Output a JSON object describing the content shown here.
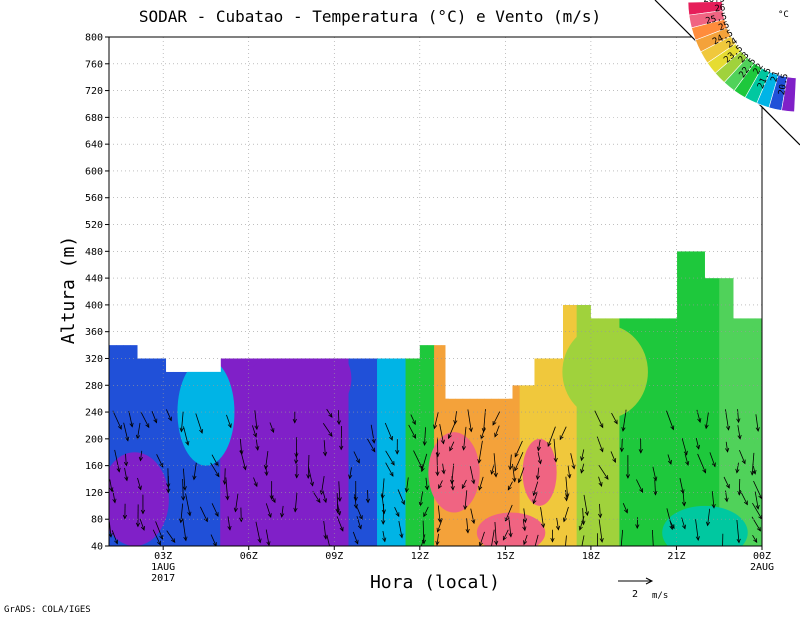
{
  "chart_data": {
    "type": "heatmap",
    "title": "SODAR - Cubatao - Temperatura (°C) e Vento (m/s)",
    "xlabel": "Hora (local)",
    "ylabel": "Altura (m)",
    "ylim": [
      40,
      800
    ],
    "y_ticks": [
      "40",
      "80",
      "120",
      "160",
      "200",
      "240",
      "280",
      "320",
      "360",
      "400",
      "440",
      "480",
      "520",
      "560",
      "600",
      "640",
      "680",
      "720",
      "760",
      "800"
    ],
    "x_ticks": [
      {
        "hour": 3,
        "label": "03Z",
        "sub1": "1AUG",
        "sub2": "2017"
      },
      {
        "hour": 6,
        "label": "06Z",
        "sub1": "",
        "sub2": ""
      },
      {
        "hour": 9,
        "label": "09Z",
        "sub1": "",
        "sub2": ""
      },
      {
        "hour": 12,
        "label": "12Z",
        "sub1": "",
        "sub2": ""
      },
      {
        "hour": 15,
        "label": "15Z",
        "sub1": "",
        "sub2": ""
      },
      {
        "hour": 18,
        "label": "18Z",
        "sub1": "",
        "sub2": ""
      },
      {
        "hour": 21,
        "label": "21Z",
        "sub1": "",
        "sub2": ""
      },
      {
        "hour": 24,
        "label": "00Z",
        "sub1": "2AUG",
        "sub2": ""
      }
    ],
    "xlim_hours": [
      1.1,
      24
    ],
    "grid": true,
    "colorbar": {
      "unit": "°C",
      "levels": [
        "26.5",
        "26",
        "25.5",
        "25",
        "24.5",
        "24",
        "23.5",
        "23",
        "22.5",
        "22",
        "21.5",
        "21",
        "20.5"
      ],
      "colors": [
        "#e61e5a",
        "#f06482",
        "#ff8c3c",
        "#f4a23a",
        "#f0c83c",
        "#e6dc32",
        "#a0d23c",
        "#50d25a",
        "#1ec83c",
        "#00c8a0",
        "#00b4e6",
        "#2050d8",
        "#8020c8"
      ]
    },
    "top_height_profile": [
      {
        "from": 1.1,
        "to": 2.1,
        "top": 340
      },
      {
        "from": 2.1,
        "to": 3.1,
        "top": 320
      },
      {
        "from": 3.1,
        "to": 5.0,
        "top": 300
      },
      {
        "from": 5.0,
        "to": 11.9,
        "top": 320
      },
      {
        "from": 11.9,
        "to": 12.9,
        "top": 340
      },
      {
        "from": 12.9,
        "to": 15.1,
        "top": 260
      },
      {
        "from": 15.1,
        "to": 16.0,
        "top": 280
      },
      {
        "from": 16.0,
        "to": 17.0,
        "top": 320
      },
      {
        "from": 17.0,
        "to": 18.0,
        "top": 400
      },
      {
        "from": 18.0,
        "to": 21.0,
        "top": 380
      },
      {
        "from": 21.0,
        "to": 22.0,
        "top": 480
      },
      {
        "from": 22.0,
        "to": 23.0,
        "top": 440
      },
      {
        "from": 23.0,
        "to": 24.0,
        "top": 380
      }
    ],
    "temperature_bands": [
      {
        "from": 1.1,
        "to": 5.0,
        "value": 21.0
      },
      {
        "from": 5.0,
        "to": 6.0,
        "value": 20.5
      },
      {
        "from": 6.0,
        "to": 9.5,
        "value": 20.5
      },
      {
        "from": 9.5,
        "to": 10.5,
        "value": 21.0
      },
      {
        "from": 10.5,
        "to": 11.5,
        "value": 21.5
      },
      {
        "from": 11.5,
        "to": 12.5,
        "value": 22.5
      },
      {
        "from": 12.5,
        "to": 15.5,
        "value": 25.0
      },
      {
        "from": 15.5,
        "to": 17.5,
        "value": 24.5
      },
      {
        "from": 17.5,
        "to": 19.0,
        "value": 23.5
      },
      {
        "from": 19.0,
        "to": 22.5,
        "value": 22.5
      },
      {
        "from": 22.5,
        "to": 24.0,
        "value": 23.0
      }
    ],
    "temperature_patches": [
      {
        "hour": 2.0,
        "alt": 110,
        "rh": 1.2,
        "ra": 70,
        "value": 20.5
      },
      {
        "hour": 4.5,
        "alt": 240,
        "rh": 1.0,
        "ra": 80,
        "value": 21.5
      },
      {
        "hour": 7.5,
        "alt": 280,
        "rh": 1.6,
        "ra": 50,
        "value": 20.0
      },
      {
        "hour": 9.0,
        "alt": 290,
        "rh": 0.6,
        "ra": 40,
        "value": 20.0
      },
      {
        "hour": 13.2,
        "alt": 150,
        "rh": 0.9,
        "ra": 60,
        "value": 26.0
      },
      {
        "hour": 15.2,
        "alt": 60,
        "rh": 1.2,
        "ra": 30,
        "value": 26.0
      },
      {
        "hour": 16.2,
        "alt": 150,
        "rh": 0.6,
        "ra": 50,
        "value": 26.0
      },
      {
        "hour": 18.5,
        "alt": 300,
        "rh": 1.5,
        "ra": 70,
        "value": 23.5
      },
      {
        "hour": 22.0,
        "alt": 60,
        "rh": 1.5,
        "ra": 40,
        "value": 22.0
      },
      {
        "hour": 23.5,
        "alt": 280,
        "rh": 0.8,
        "ra": 90,
        "value": 23.0
      }
    ],
    "wind_reference": {
      "label": "2",
      "unit": "m/s"
    }
  },
  "credit": "GrADS: COLA/IGES"
}
